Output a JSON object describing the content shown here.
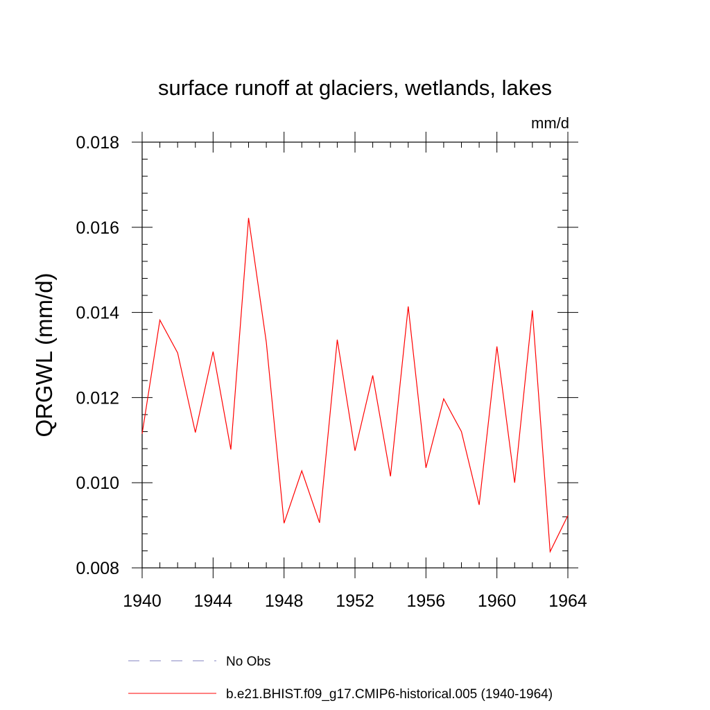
{
  "chart_data": {
    "type": "line",
    "title": "surface runoff at glaciers, wetlands, lakes",
    "units": "mm/d",
    "ylabel": "QRGWL  (mm/d)",
    "xlabel": "",
    "xlim": [
      1940,
      1964
    ],
    "ylim": [
      0.008,
      0.018
    ],
    "xticks": [
      1940,
      1944,
      1948,
      1952,
      1956,
      1960,
      1964
    ],
    "xtick_labels": [
      "1940",
      "1944",
      "1948",
      "1952",
      "1956",
      "1960",
      "1964"
    ],
    "yticks": [
      0.008,
      0.01,
      0.012,
      0.014,
      0.016,
      0.018
    ],
    "ytick_labels": [
      "0.008",
      "0.010",
      "0.012",
      "0.014",
      "0.016",
      "0.018"
    ],
    "grid": false,
    "legend_position": "bottom",
    "x": [
      1940,
      1941,
      1942,
      1943,
      1944,
      1945,
      1946,
      1947,
      1948,
      1949,
      1950,
      1951,
      1952,
      1953,
      1954,
      1955,
      1956,
      1957,
      1958,
      1959,
      1960,
      1961,
      1962,
      1963,
      1964
    ],
    "series": [
      {
        "name": "b.e21.BHIST.f09_g17.CMIP6-historical.005 (1940-1964)",
        "color": "#ff0000",
        "style": "solid",
        "values": [
          0.01115,
          0.01382,
          0.01305,
          0.01118,
          0.01308,
          0.01078,
          0.01622,
          0.0133,
          0.00905,
          0.01028,
          0.00906,
          0.01336,
          0.01075,
          0.01252,
          0.01015,
          0.01414,
          0.01035,
          0.01197,
          0.0112,
          0.00948,
          0.0132,
          0.01,
          0.01405,
          0.00838,
          0.00923
        ]
      }
    ],
    "legend": [
      {
        "label": "No Obs",
        "color": "#8080c0",
        "style": "dashed"
      },
      {
        "label": "b.e21.BHIST.f09_g17.CMIP6-historical.005 (1940-1964)",
        "color": "#ff0000",
        "style": "solid"
      }
    ]
  }
}
